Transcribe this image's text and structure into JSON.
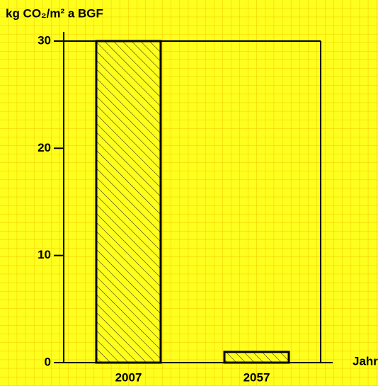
{
  "chart_data": {
    "type": "bar",
    "y_label": "kg CO₂/m² a BGF",
    "x_label": "Jahr",
    "categories": [
      "2007",
      "2057"
    ],
    "values": [
      30,
      1
    ],
    "ylim": [
      0,
      30
    ],
    "yticks": [
      0,
      10,
      20,
      30
    ],
    "color": "#000000",
    "hatch": true
  }
}
